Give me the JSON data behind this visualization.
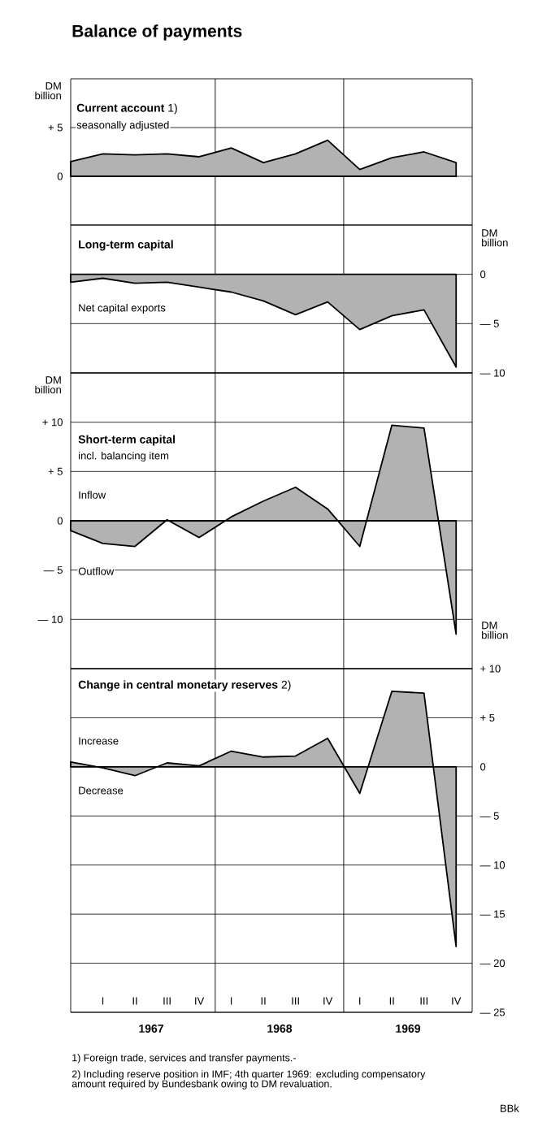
{
  "chart_data": [
    {
      "type": "area",
      "title": "Balance of payments",
      "subtitle": "**Current account** 1)",
      "ylabel": "DM billion",
      "annotations": [
        "seasonally adjusted"
      ],
      "ylim": [
        -5,
        10
      ],
      "yticks": [
        0,
        {
          "value": 5,
          "label": "+ 5"
        }
      ],
      "grid": "y",
      "tick_labels": "y",
      "categories": [
        null,
        null,
        null,
        null,
        null,
        null,
        null,
        null,
        null,
        null,
        null,
        null,
        null
      ],
      "series": [
        {
          "color": "#000000",
          "values": [
            1.5,
            2.3,
            2.2,
            2.3,
            2.0,
            2.9,
            1.4,
            2.3,
            3.7,
            0.7,
            1.9,
            2.5,
            1.4
          ]
        }
      ]
    },
    {
      "type": "area",
      "title": "Long-term capital",
      "ylabel": "DM billion",
      "annotations": [
        "Net capital exports"
      ],
      "ylim": [
        -10,
        5
      ],
      "yticks": [
        0,
        {
          "value": -5,
          "label": "— 5"
        },
        {
          "value": -10,
          "label": "— 10"
        }
      ],
      "grid": "y",
      "tick_labels": "y",
      "categories": [
        null,
        null,
        null,
        null,
        null,
        null,
        null,
        null,
        null,
        null,
        null,
        null,
        null
      ],
      "series": [
        {
          "color": "#000000",
          "values": [
            -0.8,
            -0.4,
            -0.9,
            -0.8,
            -1.3,
            -1.8,
            -2.7,
            -4.1,
            -2.8,
            -5.6,
            -4.2,
            -3.6,
            -9.4
          ]
        }
      ]
    },
    {
      "type": "area",
      "title": "Short-term capital",
      "subtitle": "incl. balancing item",
      "ylabel": "DM billion",
      "annotations": [
        "Inflow",
        "Outflow"
      ],
      "ylim": [
        -15,
        15
      ],
      "yticks": [
        {
          "value": 10,
          "label": "+ 10"
        },
        {
          "value": 5,
          "label": "+ 5"
        },
        0,
        {
          "value": -5,
          "label": "— 5"
        },
        {
          "value": -10,
          "label": "— 10"
        }
      ],
      "grid": "y",
      "tick_labels": "y",
      "categories": [
        null,
        null,
        null,
        null,
        null,
        null,
        null,
        null,
        null,
        null,
        null,
        null,
        null
      ],
      "series": [
        {
          "color": "#000000",
          "values": [
            -1.0,
            -2.3,
            -2.6,
            0.1,
            -1.7,
            0.4,
            2.0,
            3.4,
            1.2,
            -2.6,
            9.7,
            9.4,
            -11.5
          ]
        }
      ]
    },
    {
      "type": "area",
      "subtitle": "**Change in central monetary reserves** 2)",
      "ylabel": "DM billion",
      "annotations": [
        "Increase",
        "Decrease",
        "1967",
        "1968",
        "1969",
        "1) Foreign trade, services and transfer payments.-",
        "2) Including reserve position in IMF; 4th quarter 1969: excluding compensatory amount required by Bundesbank owing to DM revaluation.",
        "BBk"
      ],
      "ylim": [
        -25,
        10
      ],
      "categories": [
        null,
        "I",
        "II",
        "III",
        "IV",
        "I",
        "II",
        "III",
        "IV",
        "I",
        "II",
        "III",
        "IV"
      ],
      "yticks": [
        {
          "value": 10,
          "label": "+ 10"
        },
        {
          "value": 5,
          "label": "+ 5"
        },
        0,
        {
          "value": -5,
          "label": "— 5"
        },
        {
          "value": -10,
          "label": "— 10"
        },
        {
          "value": -15,
          "label": "— 15"
        },
        {
          "value": -20,
          "label": "— 20"
        },
        {
          "value": -25,
          "label": "— 25"
        }
      ],
      "grid": "y",
      "series": [
        {
          "color": "#000000",
          "values": [
            0.5,
            -0.1,
            -0.9,
            0.4,
            0.1,
            1.6,
            1.0,
            1.1,
            2.9,
            -2.7,
            7.7,
            7.5,
            -18.3
          ]
        }
      ]
    }
  ]
}
